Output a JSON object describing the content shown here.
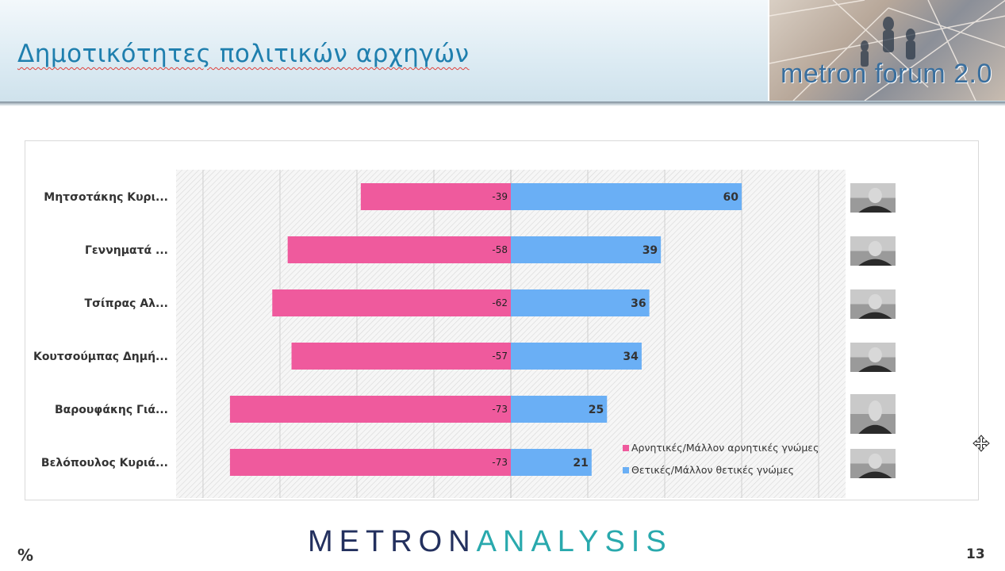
{
  "header": {
    "title": "Δημοτικότητες πολιτικών αρχηγών",
    "logo_text": "metron forum 2.0"
  },
  "footer": {
    "brand_part1": "METRON",
    "brand_part2": "ANALYSIS",
    "unit": "%",
    "page_number": "13"
  },
  "colors": {
    "negative": "#ef5a9d",
    "positive": "#6aaff5",
    "title": "#1f7fae",
    "brand_dark": "#23305e",
    "brand_teal": "#29a9ad"
  },
  "chart_data": {
    "type": "bar",
    "orientation": "horizontal-diverging",
    "categories": [
      "Μητσοτάκης Κυρι...",
      "Γεννηματά ...",
      "Τσίπρας Αλ...",
      "Κουτσούμπας Δημή...",
      "Βαρουφάκης Γιά...",
      "Βελόπουλος Κυριά..."
    ],
    "series": [
      {
        "name": "Αρνητικές/Μάλλον αρνητικές γνώμες",
        "values": [
          -39,
          -58,
          -62,
          -57,
          -73,
          -73
        ],
        "color": "#ef5a9d"
      },
      {
        "name": "Θετικές/Μάλλον θετικές γνώμες",
        "values": [
          60,
          39,
          36,
          34,
          25,
          21
        ],
        "color": "#6aaff5"
      }
    ],
    "xlim": [
      -87,
      87
    ],
    "grid": true,
    "legend_position": "bottom-right",
    "photo_icons": [
      "portrait-icon",
      "portrait-icon",
      "portrait-icon",
      "portrait-icon",
      "portrait-icon",
      "portrait-icon"
    ]
  }
}
